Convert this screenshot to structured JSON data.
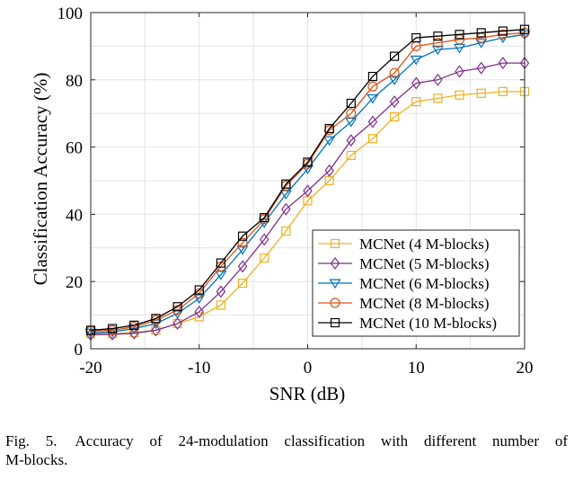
{
  "chart_data": {
    "type": "line",
    "title": "",
    "xlabel": "SNR (dB)",
    "ylabel": "Classification Accuracy (%)",
    "xlim": [
      -20,
      20
    ],
    "ylim": [
      0,
      100
    ],
    "xticks": [
      -20,
      -10,
      0,
      10,
      20
    ],
    "yticks": [
      0,
      20,
      40,
      60,
      80,
      100
    ],
    "xtick_labels": [
      "-20",
      "-10",
      "0",
      "10",
      "20"
    ],
    "ytick_labels": [
      "0",
      "20",
      "40",
      "60",
      "80",
      "100"
    ],
    "grid": true,
    "legend_position": "bottom-right",
    "x": [
      -20,
      -18,
      -16,
      -14,
      -12,
      -10,
      -8,
      -6,
      -4,
      -2,
      0,
      2,
      4,
      6,
      8,
      10,
      12,
      14,
      16,
      18,
      20
    ],
    "series": [
      {
        "name": "MCNet (4 M-blocks)",
        "color": "#EDB120",
        "marker": "square",
        "values": [
          4.5,
          4.5,
          4.8,
          5.5,
          7.5,
          9.5,
          13,
          19.5,
          27,
          35,
          44,
          50,
          57.5,
          62.5,
          69,
          73.5,
          74.5,
          75.5,
          76,
          76.5,
          76.5
        ]
      },
      {
        "name": "MCNet (5 M-blocks)",
        "color": "#7E2F8E",
        "marker": "diamond",
        "values": [
          4.2,
          4.3,
          4.6,
          5.5,
          7.5,
          11,
          17,
          24.5,
          32.5,
          41.5,
          47,
          53,
          62,
          67.5,
          73.5,
          79,
          80,
          82.5,
          83.5,
          85,
          85
        ]
      },
      {
        "name": "MCNet (6 M-blocks)",
        "color": "#0072BD",
        "marker": "triangle-down",
        "values": [
          4.8,
          5,
          6,
          7.5,
          10.5,
          15,
          22,
          29.5,
          37.5,
          46,
          53.5,
          62,
          67.5,
          74.5,
          80,
          86,
          89,
          89.5,
          91,
          92.5,
          93.5
        ]
      },
      {
        "name": "MCNet (8 M-blocks)",
        "color": "#D95319",
        "marker": "circle",
        "values": [
          5.3,
          5.5,
          6.5,
          8.5,
          11.5,
          16.5,
          24.5,
          31.5,
          38.5,
          48.5,
          55,
          65,
          70,
          78,
          82,
          90,
          91,
          92,
          92.5,
          93.5,
          94
        ]
      },
      {
        "name": "MCNet (10 M-blocks)",
        "color": "#000000",
        "marker": "square",
        "values": [
          5.5,
          6,
          7,
          9,
          12.5,
          17.5,
          25.5,
          33.5,
          39,
          49,
          55.5,
          65.5,
          73,
          81,
          87,
          92.5,
          93,
          93.5,
          94,
          94.5,
          95
        ]
      }
    ]
  },
  "caption": {
    "line1": "Fig. 5.   Accuracy of 24-modulation classification with different number of",
    "fig_label": "Fig. 5.",
    "line1_text": "Accuracy of 24-modulation classification with different number of",
    "line2": "M-blocks."
  }
}
